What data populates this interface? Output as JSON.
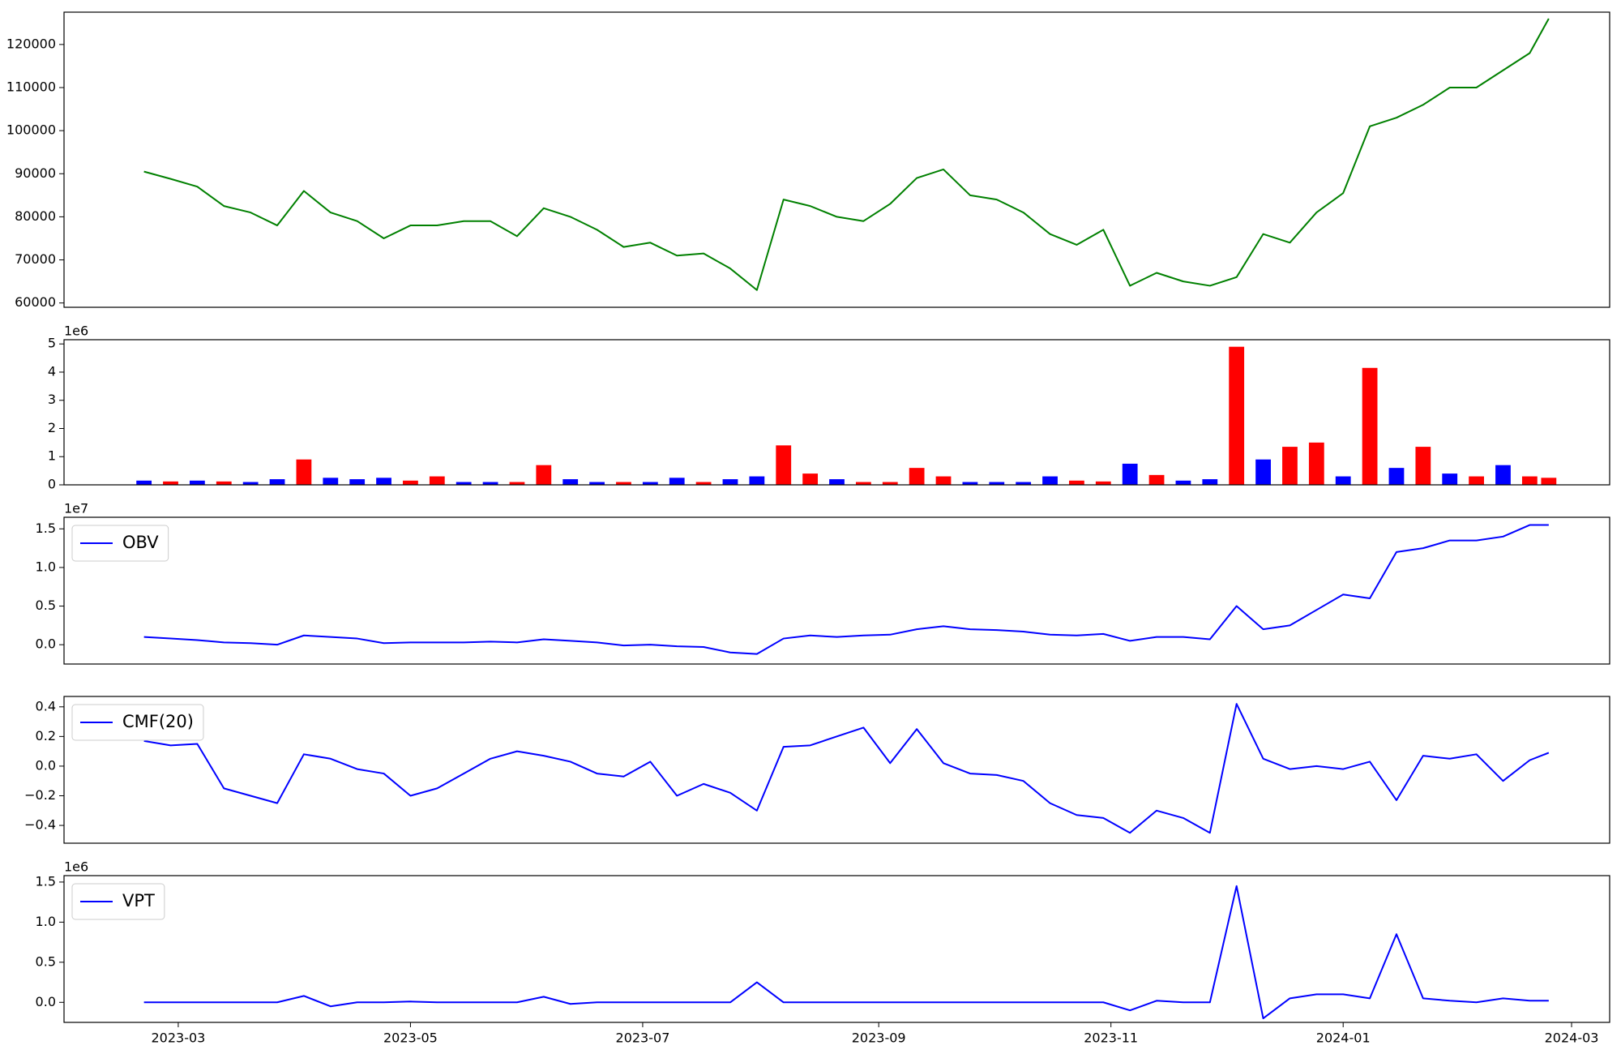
{
  "chart_data": {
    "type": "multi-panel",
    "x": [
      "2023-02-20",
      "2023-02-27",
      "2023-03-06",
      "2023-03-13",
      "2023-03-20",
      "2023-03-27",
      "2023-04-03",
      "2023-04-10",
      "2023-04-17",
      "2023-04-24",
      "2023-05-01",
      "2023-05-08",
      "2023-05-15",
      "2023-05-22",
      "2023-05-29",
      "2023-06-05",
      "2023-06-12",
      "2023-06-19",
      "2023-06-26",
      "2023-07-03",
      "2023-07-10",
      "2023-07-17",
      "2023-07-24",
      "2023-07-31",
      "2023-08-07",
      "2023-08-14",
      "2023-08-21",
      "2023-08-28",
      "2023-09-04",
      "2023-09-11",
      "2023-09-18",
      "2023-09-25",
      "2023-10-02",
      "2023-10-09",
      "2023-10-16",
      "2023-10-23",
      "2023-10-30",
      "2023-11-06",
      "2023-11-13",
      "2023-11-20",
      "2023-11-27",
      "2023-12-04",
      "2023-12-11",
      "2023-12-18",
      "2023-12-25",
      "2024-01-01",
      "2024-01-08",
      "2024-01-15",
      "2024-01-22",
      "2024-01-29",
      "2024-02-05",
      "2024-02-12",
      "2024-02-19",
      "2024-02-24"
    ],
    "xlim": [
      "2023-01-30",
      "2024-03-11"
    ],
    "xticks": [
      {
        "value": "2023-03-01",
        "label": "2023-03"
      },
      {
        "value": "2023-05-01",
        "label": "2023-05"
      },
      {
        "value": "2023-07-01",
        "label": "2023-07"
      },
      {
        "value": "2023-09-01",
        "label": "2023-09"
      },
      {
        "value": "2023-11-01",
        "label": "2023-11"
      },
      {
        "value": "2024-01-01",
        "label": "2024-01"
      },
      {
        "value": "2024-03-01",
        "label": "2024-03"
      }
    ],
    "panels": [
      {
        "type": "line",
        "color": "green",
        "values": [
          90500,
          88800,
          87000,
          82500,
          81000,
          78000,
          86000,
          81000,
          79000,
          75000,
          78000,
          78000,
          79000,
          79000,
          75500,
          82000,
          80000,
          77000,
          73000,
          74000,
          71000,
          71500,
          68000,
          63000,
          84000,
          82500,
          80000,
          79000,
          83000,
          89000,
          91000,
          85000,
          84000,
          81000,
          76000,
          73500,
          77000,
          64000,
          67000,
          65000,
          64000,
          66000,
          76000,
          74000,
          81000,
          85500,
          101000,
          103000,
          106000,
          110000,
          110000,
          114000,
          118000,
          126000
        ],
        "ylim": [
          59000,
          127500
        ],
        "yticks": [
          60000,
          70000,
          80000,
          90000,
          100000,
          110000,
          120000
        ]
      },
      {
        "type": "bar",
        "offset_label": "1e6",
        "values": [
          0.15,
          0.12,
          0.15,
          0.12,
          0.1,
          0.2,
          0.9,
          0.25,
          0.2,
          0.25,
          0.15,
          0.3,
          0.1,
          0.1,
          0.1,
          0.7,
          0.2,
          0.1,
          0.1,
          0.1,
          0.25,
          0.1,
          0.2,
          0.3,
          1.4,
          0.4,
          0.2,
          0.1,
          0.1,
          0.6,
          0.3,
          0.1,
          0.1,
          0.1,
          0.3,
          0.15,
          0.12,
          0.75,
          0.35,
          0.15,
          0.2,
          4.9,
          0.9,
          1.35,
          1.5,
          0.3,
          4.15,
          0.6,
          1.35,
          0.4,
          0.3,
          0.7,
          0.3,
          0.25
        ],
        "colors": [
          "blue",
          "red",
          "blue",
          "red",
          "blue",
          "blue",
          "red",
          "blue",
          "blue",
          "blue",
          "red",
          "red",
          "blue",
          "blue",
          "red",
          "red",
          "blue",
          "blue",
          "red",
          "blue",
          "blue",
          "red",
          "blue",
          "blue",
          "red",
          "red",
          "blue",
          "red",
          "red",
          "red",
          "red",
          "blue",
          "blue",
          "blue",
          "blue",
          "red",
          "red",
          "blue",
          "red",
          "blue",
          "blue",
          "red",
          "blue",
          "red",
          "red",
          "blue",
          "red",
          "blue",
          "red",
          "blue",
          "red",
          "blue",
          "red",
          "red"
        ],
        "ylim": [
          0,
          5.15
        ],
        "yticks": [
          0,
          1,
          2,
          3,
          4,
          5
        ]
      },
      {
        "type": "line",
        "offset_label": "1e7",
        "legend": "upper left",
        "series": [
          {
            "name": "OBV",
            "color": "blue",
            "values": [
              0.1,
              0.08,
              0.06,
              0.03,
              0.02,
              0.0,
              0.12,
              0.1,
              0.08,
              0.02,
              0.03,
              0.03,
              0.03,
              0.04,
              0.03,
              0.07,
              0.05,
              0.03,
              -0.01,
              0.0,
              -0.02,
              -0.03,
              -0.1,
              -0.12,
              0.08,
              0.12,
              0.1,
              0.12,
              0.13,
              0.2,
              0.24,
              0.2,
              0.19,
              0.17,
              0.13,
              0.12,
              0.14,
              0.05,
              0.1,
              0.1,
              0.07,
              0.5,
              0.2,
              0.25,
              0.45,
              0.65,
              0.6,
              1.2,
              1.25,
              1.35,
              1.35,
              1.4,
              1.55,
              1.55
            ]
          }
        ],
        "ylim": [
          -0.25,
          1.65
        ],
        "yticks": [
          {
            "value": 0,
            "label": "0.0"
          },
          {
            "value": 0.5,
            "label": "0.5"
          },
          {
            "value": 1,
            "label": "1.0"
          },
          {
            "value": 1.5,
            "label": "1.5"
          }
        ]
      },
      {
        "type": "line",
        "legend": "upper left",
        "series": [
          {
            "name": "CMF(20)",
            "color": "blue",
            "values": [
              0.17,
              0.14,
              0.15,
              -0.15,
              -0.2,
              -0.25,
              0.08,
              0.05,
              -0.02,
              -0.05,
              -0.2,
              -0.15,
              -0.05,
              0.05,
              0.1,
              0.07,
              0.03,
              -0.05,
              -0.07,
              0.03,
              -0.2,
              -0.12,
              -0.18,
              -0.3,
              0.13,
              0.14,
              0.2,
              0.26,
              0.02,
              0.25,
              0.02,
              -0.05,
              -0.06,
              -0.1,
              -0.25,
              -0.33,
              -0.35,
              -0.45,
              -0.3,
              -0.35,
              -0.45,
              0.42,
              0.05,
              -0.02,
              0.0,
              -0.02,
              0.03,
              -0.23,
              0.07,
              0.05,
              0.08,
              -0.1,
              0.04,
              0.09
            ]
          }
        ],
        "ylim": [
          -0.52,
          0.47
        ],
        "yticks": [
          {
            "value": -0.4,
            "label": "−0.4"
          },
          {
            "value": -0.2,
            "label": "−0.2"
          },
          {
            "value": 0,
            "label": "0.0"
          },
          {
            "value": 0.2,
            "label": "0.2"
          },
          {
            "value": 0.4,
            "label": "0.4"
          }
        ]
      },
      {
        "type": "line",
        "offset_label": "1e6",
        "legend": "upper left",
        "series": [
          {
            "name": "VPT",
            "color": "blue",
            "values": [
              0,
              0,
              0,
              0,
              0,
              0,
              0.08,
              -0.05,
              0,
              0,
              0.01,
              0,
              0,
              0,
              0,
              0.07,
              -0.02,
              0,
              0,
              0,
              0,
              0,
              0,
              0.25,
              0,
              0,
              0,
              0,
              0,
              0,
              0,
              0,
              0,
              0,
              0,
              0,
              0,
              -0.1,
              0.02,
              0,
              0,
              1.45,
              -0.2,
              0.05,
              0.1,
              0.1,
              0.05,
              0.85,
              0.05,
              0.02,
              0,
              0.05,
              0.02,
              0.02
            ]
          }
        ],
        "ylim": [
          -0.25,
          1.58
        ],
        "yticks": [
          {
            "value": 0,
            "label": "0.0"
          },
          {
            "value": 0.5,
            "label": "0.5"
          },
          {
            "value": 1,
            "label": "1.0"
          },
          {
            "value": 1.5,
            "label": "1.5"
          }
        ]
      }
    ]
  }
}
